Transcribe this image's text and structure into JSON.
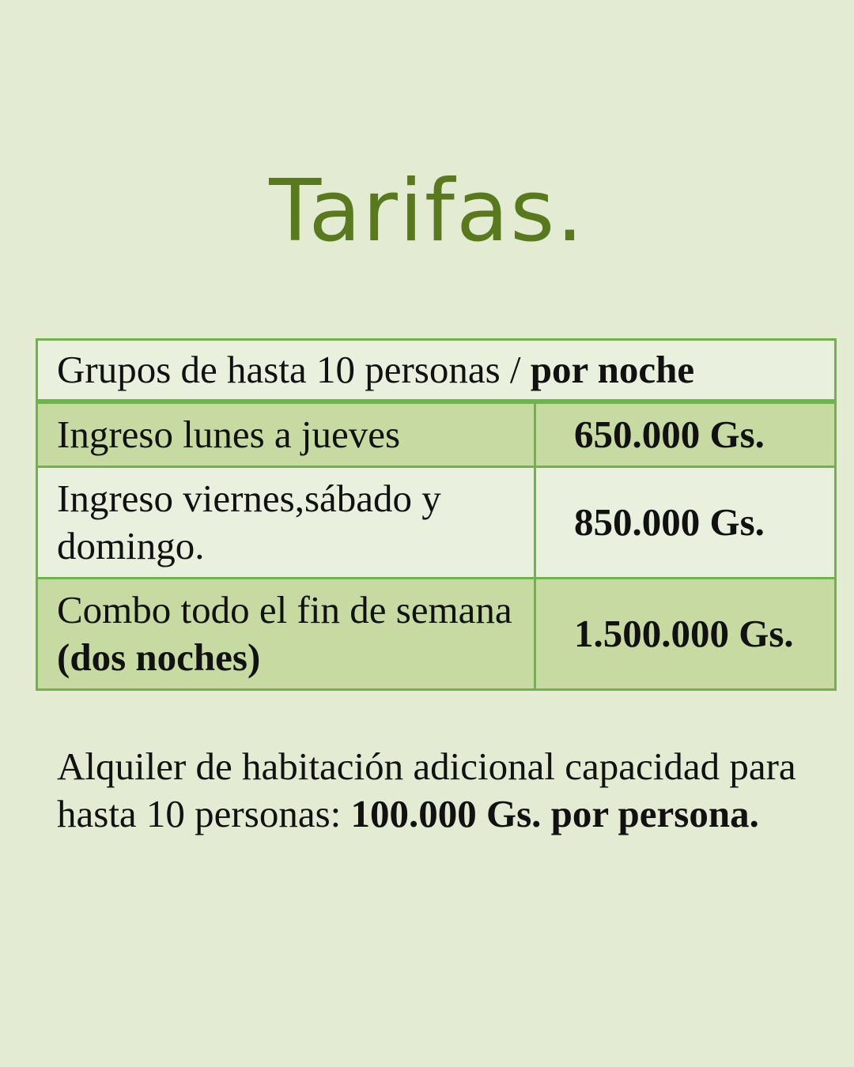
{
  "title": "Tarifas.",
  "table": {
    "header": {
      "text": "Grupos de hasta 10 personas / ",
      "bold": "por noche"
    },
    "rows": [
      {
        "label": "Ingreso lunes a jueves",
        "label_bold": "",
        "price": "650.000 Gs."
      },
      {
        "label": "Ingreso viernes,sábado y domingo.",
        "label_bold": "",
        "price": "850.000 Gs."
      },
      {
        "label": "Combo todo el fin de semana ",
        "label_bold": "(dos noches)",
        "price": "1.500.000 Gs."
      }
    ]
  },
  "note": {
    "text": "Alquiler de habitación adicional capacidad para hasta 10 personas: ",
    "bold": "100.000 Gs. por persona."
  },
  "colors": {
    "title": "#587a1c",
    "border": "#6fb34c",
    "shaded_row": "#c6daa1",
    "background": "#e3ebd3"
  }
}
